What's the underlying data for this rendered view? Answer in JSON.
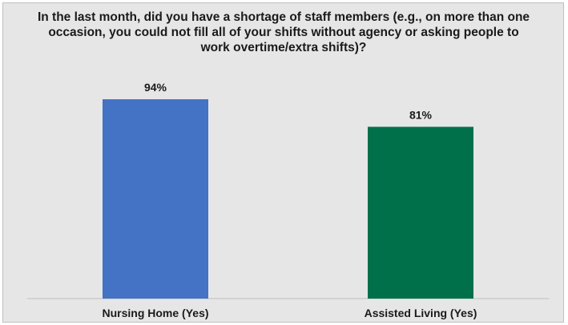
{
  "chart_data": {
    "type": "bar",
    "title": "In the last month, did you have a shortage of staff members (e.g., on more than one occasion, you could not fill all of your shifts without agency or asking people to work overtime/extra shifts)?",
    "categories": [
      "Nursing Home (Yes)",
      "Assisted Living (Yes)"
    ],
    "values": [
      94,
      81
    ],
    "value_labels": [
      "94%",
      "81%"
    ],
    "colors": [
      "#4472c4",
      "#00704a"
    ],
    "ylim": [
      0,
      100
    ],
    "grid": false,
    "legend": "none"
  }
}
